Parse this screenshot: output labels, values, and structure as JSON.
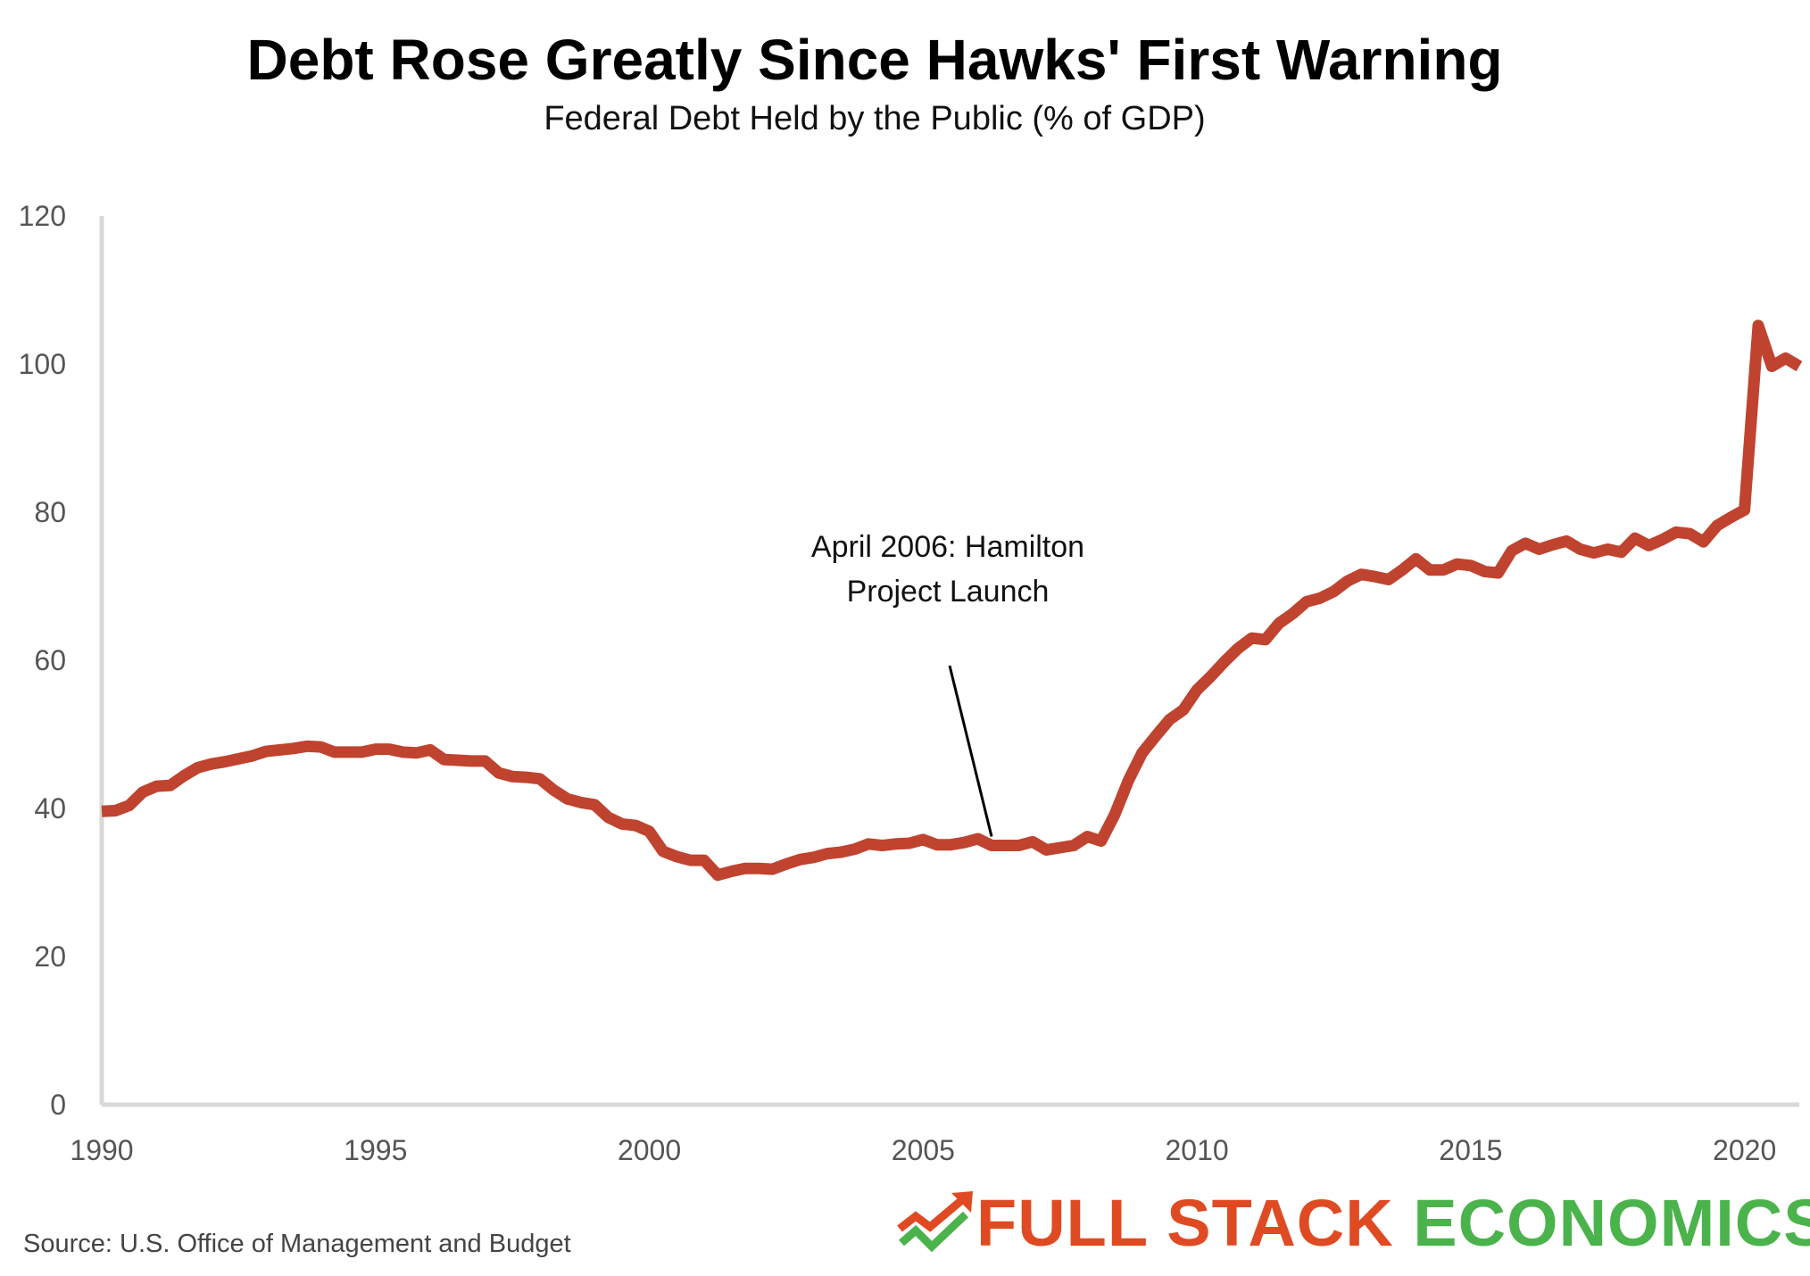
{
  "title": "Debt Rose Greatly Since Hawks' First Warning",
  "subtitle": "Federal Debt Held by the Public (% of GDP)",
  "source": "Source: U.S. Office of Management and Budget",
  "brand": {
    "word1": "FULL STACK",
    "word2": "ECONOMICS",
    "color1": "#e04a22",
    "color2": "#4bb34b",
    "icon": "rising-arrow-check-icon"
  },
  "colors": {
    "line": "#c0432f",
    "axis": "#d9d9d9"
  },
  "chart_data": {
    "type": "line",
    "title": "Debt Rose Greatly Since Hawks' First Warning",
    "subtitle": "Federal Debt Held by the Public (% of GDP)",
    "xlabel": "",
    "ylabel": "",
    "xlim": [
      1990,
      2021
    ],
    "ylim": [
      0,
      120
    ],
    "xticks": [
      1990,
      1995,
      2000,
      2005,
      2010,
      2015,
      2020
    ],
    "yticks": [
      0,
      20,
      40,
      60,
      80,
      100,
      120
    ],
    "grid": false,
    "annotations": [
      {
        "text_lines": [
          "April 2006: Hamilton",
          "Project Launch"
        ],
        "x": 2006.25,
        "y": 35
      }
    ],
    "series": [
      {
        "x": [
          1990,
          1990.25,
          1990.5,
          1990.75,
          1991,
          1991.25,
          1991.5,
          1991.75,
          1992,
          1992.25,
          1992.5,
          1992.75,
          1993,
          1993.25,
          1993.5,
          1993.75,
          1994,
          1994.25,
          1994.5,
          1994.75,
          1995,
          1995.25,
          1995.5,
          1995.75,
          1996,
          1996.25,
          1996.5,
          1996.75,
          1997,
          1997.25,
          1997.5,
          1997.75,
          1998,
          1998.25,
          1998.5,
          1998.75,
          1999,
          1999.25,
          1999.5,
          1999.75,
          2000,
          2000.25,
          2000.5,
          2000.75,
          2001,
          2001.25,
          2001.5,
          2001.75,
          2002,
          2002.25,
          2002.5,
          2002.75,
          2003,
          2003.25,
          2003.5,
          2003.75,
          2004,
          2004.25,
          2004.5,
          2004.75,
          2005,
          2005.25,
          2005.5,
          2005.75,
          2006,
          2006.25,
          2006.5,
          2006.75,
          2007,
          2007.25,
          2007.5,
          2007.75,
          2008,
          2008.25,
          2008.5,
          2008.75,
          2009,
          2009.25,
          2009.5,
          2009.75,
          2010,
          2010.25,
          2010.5,
          2010.75,
          2011,
          2011.25,
          2011.5,
          2011.75,
          2012,
          2012.25,
          2012.5,
          2012.75,
          2013,
          2013.25,
          2013.5,
          2013.75,
          2014,
          2014.25,
          2014.5,
          2014.75,
          2015,
          2015.25,
          2015.5,
          2015.75,
          2016,
          2016.25,
          2016.5,
          2016.75,
          2017,
          2017.25,
          2017.5,
          2017.75,
          2018,
          2018.25,
          2018.5,
          2018.75,
          2019,
          2019.25,
          2019.5,
          2019.75,
          2020,
          2020.25,
          2020.5,
          2020.75,
          2021
        ],
        "values": [
          39.6,
          39.7,
          40.4,
          42.2,
          43.0,
          43.1,
          44.4,
          45.5,
          46.0,
          46.3,
          46.7,
          47.1,
          47.7,
          47.9,
          48.1,
          48.4,
          48.3,
          47.6,
          47.6,
          47.6,
          48.0,
          48.0,
          47.6,
          47.5,
          47.9,
          46.6,
          46.5,
          46.4,
          46.4,
          44.8,
          44.3,
          44.2,
          44.0,
          42.5,
          41.3,
          40.8,
          40.5,
          38.8,
          37.9,
          37.7,
          36.9,
          34.2,
          33.5,
          33.0,
          33.0,
          31.0,
          31.5,
          31.9,
          31.9,
          31.8,
          32.5,
          33.1,
          33.4,
          33.9,
          34.1,
          34.5,
          35.2,
          35.0,
          35.2,
          35.3,
          35.8,
          35.1,
          35.1,
          35.4,
          35.9,
          35.0,
          35.0,
          35.0,
          35.5,
          34.4,
          34.7,
          35.0,
          36.2,
          35.6,
          39.2,
          43.8,
          47.5,
          49.8,
          52.0,
          53.3,
          56.0,
          57.8,
          59.8,
          61.6,
          63.0,
          62.8,
          65.0,
          66.3,
          67.9,
          68.4,
          69.3,
          70.7,
          71.6,
          71.3,
          70.9,
          72.2,
          73.7,
          72.2,
          72.2,
          73.0,
          72.8,
          72.0,
          71.8,
          74.8,
          75.8,
          75.0,
          75.6,
          76.1,
          75.0,
          74.5,
          75.0,
          74.6,
          76.5,
          75.5,
          76.3,
          77.3,
          77.1,
          76.0,
          78.2,
          79.3,
          80.3,
          105.2,
          99.7,
          100.8,
          99.7
        ]
      }
    ]
  }
}
